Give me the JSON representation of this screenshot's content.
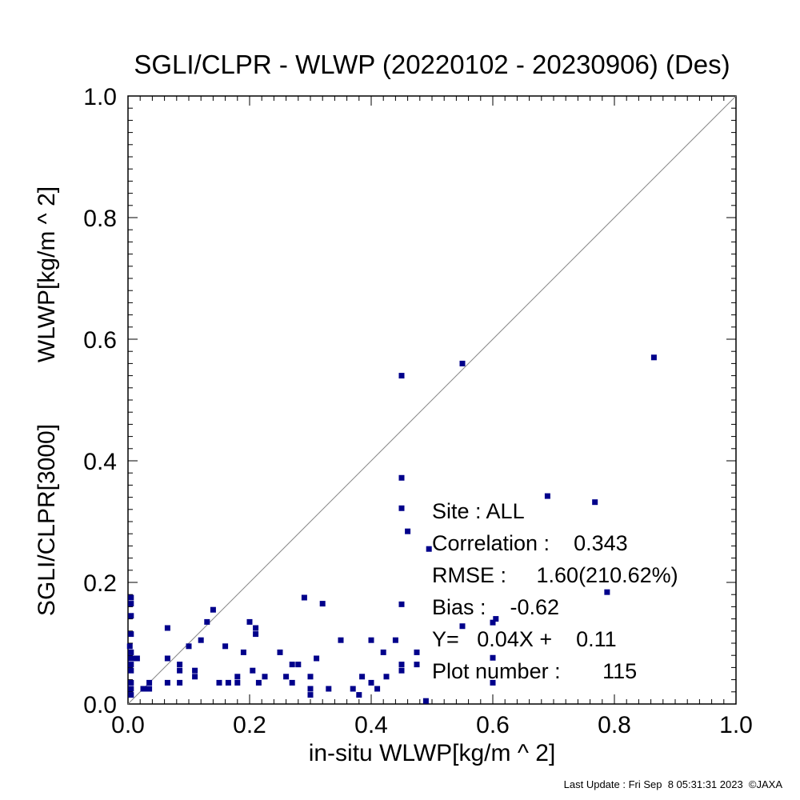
{
  "chart_data": {
    "type": "scatter",
    "title": "SGLI/CLPR - WLWP (20220102 - 20230906) (Des)",
    "xlabel": "in-situ WLWP[kg/m ^ 2]",
    "ylabel_line1": "SGLI/CLPR[3000]",
    "ylabel_line2": "WLWP[kg/m ^ 2]",
    "xlim": [
      0,
      1
    ],
    "ylim": [
      0,
      1
    ],
    "x_ticks": [
      0,
      0.2,
      0.4,
      0.6,
      0.8,
      1.0
    ],
    "y_ticks": [
      0,
      0.2,
      0.4,
      0.6,
      0.8,
      1.0
    ],
    "x_tick_labels": [
      "0.0",
      "0.2",
      "0.4",
      "0.6",
      "0.8",
      "1.0"
    ],
    "y_tick_labels": [
      "0.0",
      "0.2",
      "0.4",
      "0.6",
      "0.8",
      "1.0"
    ],
    "grid": false,
    "one_to_one_line": true,
    "marker_color": "#00008b",
    "line_color": "#888888",
    "stats": {
      "site": "Site : ALL",
      "correlation": "Correlation :    0.343",
      "rmse": "RMSE :     1.60(210.62%)",
      "bias": "Bias :    -0.62",
      "regression": "Y=   0.04X +    0.11",
      "plot_number": "Plot number :       115"
    },
    "points": [
      [
        0.865,
        0.57
      ],
      [
        0.55,
        0.56
      ],
      [
        0.45,
        0.54
      ],
      [
        0.45,
        0.372
      ],
      [
        0.45,
        0.322
      ],
      [
        0.46,
        0.284
      ],
      [
        0.69,
        0.342
      ],
      [
        0.768,
        0.332
      ],
      [
        0.788,
        0.184
      ],
      [
        0.495,
        0.255
      ],
      [
        0.45,
        0.164
      ],
      [
        0.6,
        0.134
      ],
      [
        0.605,
        0.14
      ],
      [
        0.55,
        0.128
      ],
      [
        0.6,
        0.076
      ],
      [
        0.6,
        0.035
      ],
      [
        0.49,
        0.005
      ],
      [
        0.475,
        0.085
      ],
      [
        0.475,
        0.065
      ],
      [
        0.45,
        0.065
      ],
      [
        0.45,
        0.055
      ],
      [
        0.44,
        0.105
      ],
      [
        0.42,
        0.085
      ],
      [
        0.425,
        0.045
      ],
      [
        0.41,
        0.025
      ],
      [
        0.4,
        0.105
      ],
      [
        0.4,
        0.035
      ],
      [
        0.385,
        0.045
      ],
      [
        0.38,
        0.015
      ],
      [
        0.37,
        0.025
      ],
      [
        0.35,
        0.105
      ],
      [
        0.33,
        0.025
      ],
      [
        0.32,
        0.165
      ],
      [
        0.31,
        0.075
      ],
      [
        0.3,
        0.045
      ],
      [
        0.3,
        0.025
      ],
      [
        0.3,
        0.015
      ],
      [
        0.29,
        0.175
      ],
      [
        0.28,
        0.065
      ],
      [
        0.27,
        0.065
      ],
      [
        0.27,
        0.035
      ],
      [
        0.26,
        0.045
      ],
      [
        0.25,
        0.085
      ],
      [
        0.225,
        0.045
      ],
      [
        0.215,
        0.035
      ],
      [
        0.21,
        0.125
      ],
      [
        0.21,
        0.115
      ],
      [
        0.205,
        0.055
      ],
      [
        0.2,
        0.135
      ],
      [
        0.19,
        0.085
      ],
      [
        0.18,
        0.045
      ],
      [
        0.18,
        0.035
      ],
      [
        0.165,
        0.035
      ],
      [
        0.16,
        0.095
      ],
      [
        0.15,
        0.035
      ],
      [
        0.14,
        0.155
      ],
      [
        0.13,
        0.135
      ],
      [
        0.12,
        0.105
      ],
      [
        0.11,
        0.055
      ],
      [
        0.11,
        0.045
      ],
      [
        0.1,
        0.095
      ],
      [
        0.085,
        0.065
      ],
      [
        0.085,
        0.055
      ],
      [
        0.085,
        0.035
      ],
      [
        0.065,
        0.125
      ],
      [
        0.065,
        0.075
      ],
      [
        0.065,
        0.035
      ],
      [
        0.035,
        0.035
      ],
      [
        0.035,
        0.025
      ],
      [
        0.03,
        0.025
      ],
      [
        0.025,
        0.025
      ],
      [
        0.015,
        0.075
      ],
      [
        0.01,
        0.075
      ],
      [
        0.005,
        0.175
      ],
      [
        0.005,
        0.165
      ],
      [
        0.005,
        0.145
      ],
      [
        0.005,
        0.115
      ],
      [
        0.005,
        0.085
      ],
      [
        0.005,
        0.075
      ],
      [
        0.005,
        0.065
      ],
      [
        0.005,
        0.055
      ],
      [
        0.005,
        0.035
      ],
      [
        0.005,
        0.025
      ],
      [
        0.005,
        0.015
      ],
      [
        0.003,
        0.095
      ]
    ]
  },
  "footer": {
    "last_update": "Last Update : Fri Sep  8 05:31:31 2023  ©JAXA"
  }
}
